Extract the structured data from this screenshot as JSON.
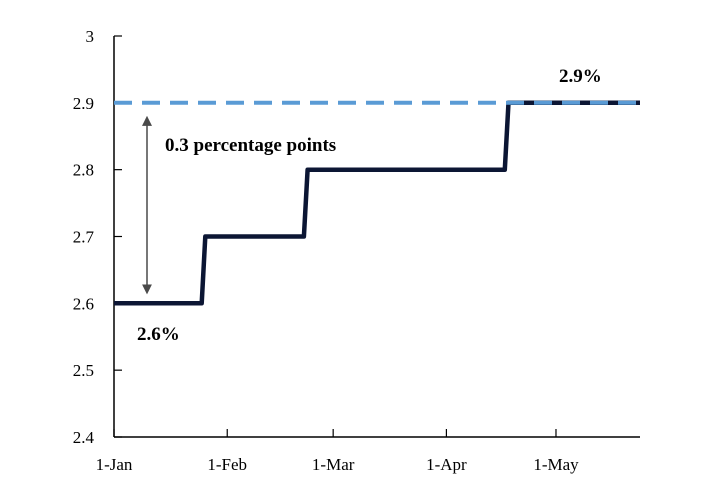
{
  "chart_data": {
    "type": "line",
    "title": "",
    "xlabel": "",
    "ylabel": "",
    "x_ticks": [
      "1-Jan",
      "1-Feb",
      "1-Mar",
      "1-Apr",
      "1-May"
    ],
    "y_ticks": [
      "2.4",
      "2.5",
      "2.6",
      "2.7",
      "2.8",
      "2.9",
      "3"
    ],
    "ylim": [
      2.4,
      3.0
    ],
    "xlim": [
      "2024-01-01",
      "2024-05-24"
    ],
    "grid": false,
    "legend": "none",
    "series": [
      {
        "style": "solid",
        "color": "#0c1634",
        "points": [
          [
            "2024-01-01",
            2.6
          ],
          [
            "2024-01-25",
            2.6
          ],
          [
            "2024-01-26",
            2.7
          ],
          [
            "2024-02-22",
            2.7
          ],
          [
            "2024-02-23",
            2.8
          ],
          [
            "2024-04-17",
            2.8
          ],
          [
            "2024-04-18",
            2.9
          ],
          [
            "2024-05-24",
            2.9
          ]
        ]
      },
      {
        "style": "dashed",
        "color": "#5a9bd5",
        "points": [
          [
            "2024-01-01",
            2.9
          ],
          [
            "2024-05-24",
            2.9
          ]
        ]
      }
    ],
    "annotations": {
      "start_value": "2.6%",
      "end_value": "2.9%",
      "gap": "0.3 percentage points"
    }
  }
}
